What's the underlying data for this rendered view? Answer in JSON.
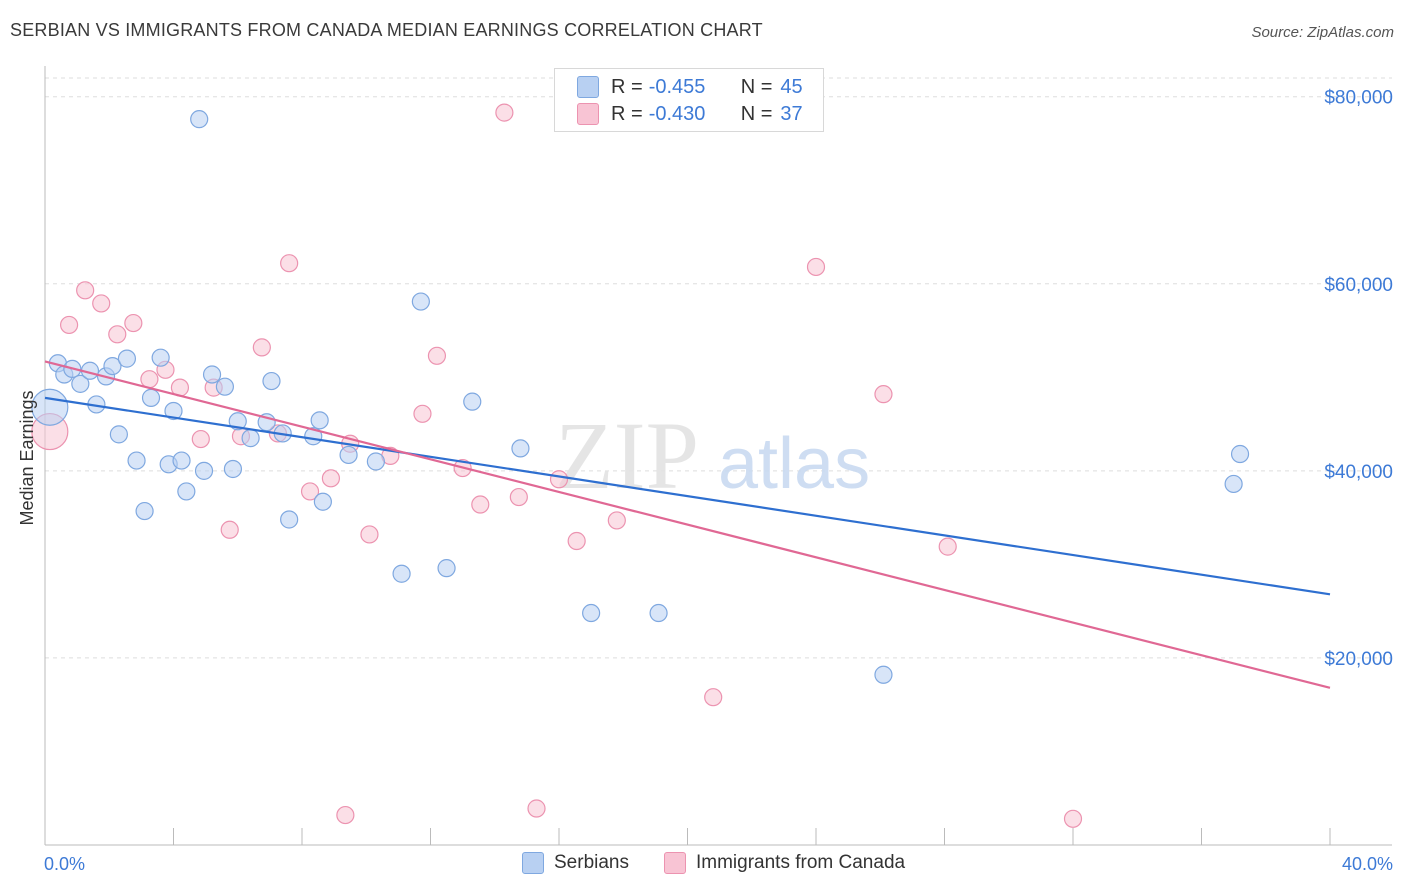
{
  "header": {
    "title": "SERBIAN VS IMMIGRANTS FROM CANADA MEDIAN EARNINGS CORRELATION CHART",
    "source": "Source: ZipAtlas.com"
  },
  "legend": {
    "series1": {
      "r_label": "R =",
      "r_value": "-0.455",
      "n_label": "N =",
      "n_value": "45"
    },
    "series2": {
      "r_label": "R =",
      "r_value": "-0.430",
      "n_label": "N =",
      "n_value": "37"
    }
  },
  "bottom_legend": {
    "series1": "Serbians",
    "series2": "Immigrants from Canada"
  },
  "watermark": {
    "zip": "ZIP",
    "atlas": "atlas"
  },
  "colors": {
    "blue_fill": "#b8d0f2",
    "blue_stroke": "#7fa8e0",
    "blue_line": "#2e6fd0",
    "pink_fill": "#f8c4d4",
    "pink_stroke": "#ec93b0",
    "pink_line": "#e06894",
    "axis_text": "#3d7ad6",
    "grid": "#dddddd"
  },
  "chart_data": {
    "type": "scatter",
    "title": "SERBIAN VS IMMIGRANTS FROM CANADA MEDIAN EARNINGS CORRELATION CHART",
    "xlabel": "",
    "ylabel": "Median Earnings",
    "xlim": [
      0,
      40
    ],
    "ylim": [
      0,
      82000
    ],
    "x_tick_labels": [
      "0.0%",
      "40.0%"
    ],
    "y_ticks": [
      20000,
      40000,
      60000,
      80000
    ],
    "y_tick_labels": [
      "$20,000",
      "$40,000",
      "$60,000",
      "$80,000"
    ],
    "grid": true,
    "legend_position": "top-center",
    "series": [
      {
        "name": "Serbians",
        "color": "#b8d0f2",
        "r": -0.455,
        "n": 45,
        "trend": {
          "x": [
            0,
            40
          ],
          "y": [
            47800,
            26800
          ]
        },
        "points": [
          {
            "x": 0.15,
            "y": 46800,
            "big": true
          },
          {
            "x": 0.4,
            "y": 51500
          },
          {
            "x": 0.6,
            "y": 50300
          },
          {
            "x": 0.85,
            "y": 50900
          },
          {
            "x": 1.1,
            "y": 49300
          },
          {
            "x": 1.4,
            "y": 50700
          },
          {
            "x": 1.6,
            "y": 47100
          },
          {
            "x": 1.9,
            "y": 50100
          },
          {
            "x": 2.1,
            "y": 51200
          },
          {
            "x": 2.3,
            "y": 43900
          },
          {
            "x": 2.55,
            "y": 52000
          },
          {
            "x": 2.85,
            "y": 41100
          },
          {
            "x": 3.1,
            "y": 35700
          },
          {
            "x": 3.3,
            "y": 47800
          },
          {
            "x": 3.6,
            "y": 52100
          },
          {
            "x": 3.85,
            "y": 40700
          },
          {
            "x": 4.0,
            "y": 46400
          },
          {
            "x": 4.25,
            "y": 41100
          },
          {
            "x": 4.4,
            "y": 37800
          },
          {
            "x": 4.8,
            "y": 77600
          },
          {
            "x": 4.95,
            "y": 40000
          },
          {
            "x": 5.2,
            "y": 50300
          },
          {
            "x": 5.6,
            "y": 49000
          },
          {
            "x": 5.85,
            "y": 40200
          },
          {
            "x": 6.0,
            "y": 45300
          },
          {
            "x": 6.4,
            "y": 43500
          },
          {
            "x": 6.9,
            "y": 45200
          },
          {
            "x": 7.05,
            "y": 49600
          },
          {
            "x": 7.4,
            "y": 44000
          },
          {
            "x": 7.6,
            "y": 34800
          },
          {
            "x": 8.35,
            "y": 43700
          },
          {
            "x": 8.55,
            "y": 45400
          },
          {
            "x": 8.65,
            "y": 36700
          },
          {
            "x": 9.45,
            "y": 41700
          },
          {
            "x": 10.3,
            "y": 41000
          },
          {
            "x": 11.1,
            "y": 29000
          },
          {
            "x": 11.7,
            "y": 58100
          },
          {
            "x": 12.5,
            "y": 29600
          },
          {
            "x": 13.3,
            "y": 47400
          },
          {
            "x": 14.8,
            "y": 42400
          },
          {
            "x": 17.0,
            "y": 24800
          },
          {
            "x": 19.1,
            "y": 24800
          },
          {
            "x": 26.1,
            "y": 18200
          },
          {
            "x": 37.0,
            "y": 38600
          },
          {
            "x": 37.2,
            "y": 41800
          }
        ]
      },
      {
        "name": "Immigrants from Canada",
        "color": "#f8c4d4",
        "r": -0.43,
        "n": 37,
        "trend": {
          "x": [
            0,
            40
          ],
          "y": [
            51700,
            16800
          ]
        },
        "points": [
          {
            "x": 0.15,
            "y": 44200,
            "big": true
          },
          {
            "x": 0.75,
            "y": 55600
          },
          {
            "x": 1.25,
            "y": 59300
          },
          {
            "x": 1.75,
            "y": 57900
          },
          {
            "x": 2.25,
            "y": 54600
          },
          {
            "x": 2.75,
            "y": 55800
          },
          {
            "x": 3.25,
            "y": 49800
          },
          {
            "x": 3.75,
            "y": 50800
          },
          {
            "x": 4.2,
            "y": 48900
          },
          {
            "x": 4.85,
            "y": 43400
          },
          {
            "x": 5.25,
            "y": 48900
          },
          {
            "x": 5.75,
            "y": 33700
          },
          {
            "x": 6.1,
            "y": 43700
          },
          {
            "x": 6.75,
            "y": 53200
          },
          {
            "x": 7.25,
            "y": 44000
          },
          {
            "x": 7.6,
            "y": 62200
          },
          {
            "x": 8.25,
            "y": 37800
          },
          {
            "x": 8.9,
            "y": 39200
          },
          {
            "x": 9.5,
            "y": 42900
          },
          {
            "x": 9.35,
            "y": 3200
          },
          {
            "x": 10.1,
            "y": 33200
          },
          {
            "x": 10.75,
            "y": 41600
          },
          {
            "x": 11.75,
            "y": 46100
          },
          {
            "x": 12.2,
            "y": 52300
          },
          {
            "x": 13.0,
            "y": 40300
          },
          {
            "x": 13.55,
            "y": 36400
          },
          {
            "x": 14.3,
            "y": 78300
          },
          {
            "x": 14.75,
            "y": 37200
          },
          {
            "x": 15.3,
            "y": 3900
          },
          {
            "x": 16.0,
            "y": 39100
          },
          {
            "x": 16.55,
            "y": 32500
          },
          {
            "x": 17.8,
            "y": 34700
          },
          {
            "x": 20.8,
            "y": 15800
          },
          {
            "x": 24.0,
            "y": 61800
          },
          {
            "x": 26.1,
            "y": 48200
          },
          {
            "x": 28.1,
            "y": 31900
          },
          {
            "x": 32.0,
            "y": 2800
          }
        ]
      }
    ]
  }
}
